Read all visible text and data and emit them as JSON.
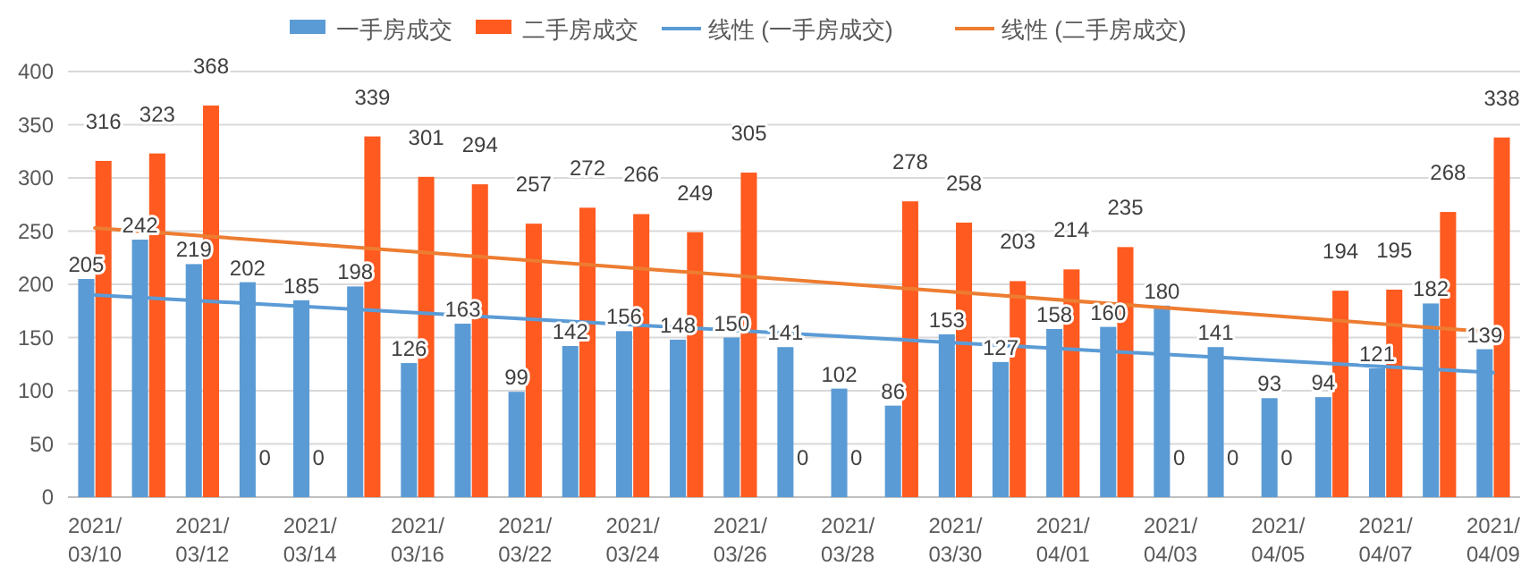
{
  "chart_data": {
    "type": "bar",
    "categories": [
      "2021/03/10",
      null,
      "2021/03/12",
      null,
      "2021/03/14",
      null,
      "2021/03/16",
      null,
      "2021/03/22",
      null,
      "2021/03/24",
      null,
      "2021/03/26",
      null,
      "2021/03/28",
      null,
      "2021/03/30",
      null,
      "2021/04/01",
      null,
      "2021/04/03",
      null,
      "2021/04/05",
      null,
      "2021/04/07",
      null,
      "2021/04/09"
    ],
    "series": [
      {
        "name": "一手房成交",
        "color": "#5b9bd5",
        "values": [
          205,
          242,
          219,
          202,
          185,
          198,
          126,
          163,
          99,
          142,
          156,
          148,
          150,
          141,
          102,
          86,
          153,
          127,
          158,
          160,
          180,
          141,
          93,
          94,
          121,
          182,
          139
        ],
        "value_labels": [
          "205",
          "242",
          "219",
          "202",
          "185",
          "198",
          "126",
          "163",
          "99",
          "142",
          "156",
          "148",
          "150",
          "141",
          "102",
          "86",
          "153",
          "127",
          "158",
          "160",
          "180",
          "141",
          "93",
          "94",
          "121",
          "182",
          "139"
        ]
      },
      {
        "name": "二手房成交",
        "color": "#ff5a1f",
        "values": [
          316,
          323,
          368,
          0,
          0,
          339,
          301,
          294,
          257,
          272,
          266,
          249,
          305,
          0,
          0,
          278,
          258,
          203,
          214,
          235,
          0,
          0,
          0,
          194,
          195,
          268,
          338
        ],
        "value_labels": [
          "316",
          "323",
          "368",
          "0",
          "0",
          "339",
          "301",
          "294",
          "257",
          "272",
          "266",
          "249",
          "305",
          "0",
          "0",
          "278",
          "258",
          "203",
          "214",
          "235",
          "0",
          "0",
          "0",
          "194",
          "195",
          "268",
          "338"
        ]
      },
      {
        "name": "线性 (一手房成交)",
        "type": "line",
        "color": "#5b9bd5",
        "x": [
          "2021/03/10",
          "2021/04/09"
        ],
        "values": [
          190,
          117
        ]
      },
      {
        "name": "线性 (二手房成交)",
        "type": "line",
        "color": "#ed7d31",
        "x": [
          "2021/03/10",
          "2021/04/09"
        ],
        "values": [
          253,
          155
        ]
      }
    ],
    "ylim": [
      0,
      400
    ],
    "yticks": [
      0,
      50,
      100,
      150,
      200,
      250,
      300,
      350,
      400
    ],
    "grid": "y",
    "legend": "top"
  }
}
